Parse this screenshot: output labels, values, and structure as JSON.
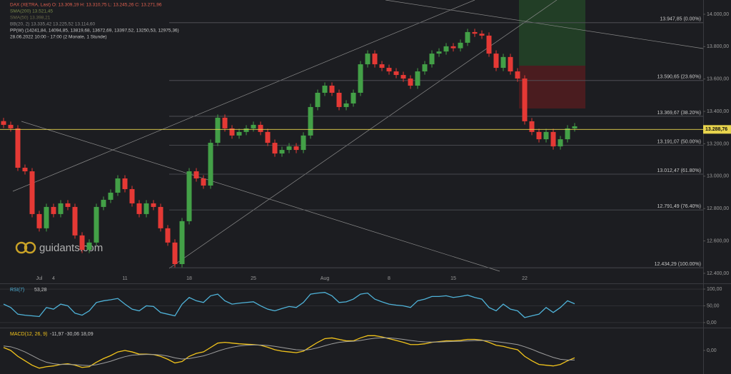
{
  "header": {
    "lines": [
      "DAX (XETRA, Last)  O: 13.309,19  H: 13.310,75  L: 13.245,26  C: 13.271,96",
      "SMA(200)  13.521,45",
      "SMA(50)  13.398,21",
      "BB(20, 2)  13.335,42  13.225,52  13.114,60",
      "PP(W)  (14241,84, 14094,85, 13819,68, 13672,69, 13397,52, 13250,53, 12975,36)",
      "28.06.2022 10:00 - 17:00  (2 Monate, 1 Stunde)"
    ],
    "watermark": "guidants.com"
  },
  "chart_data": [
    {
      "type": "candlestick",
      "categories": [
        null,
        null,
        null,
        null,
        null,
        "Jul",
        null,
        "4",
        null,
        null,
        null,
        null,
        null,
        null,
        null,
        null,
        null,
        "11",
        null,
        null,
        null,
        null,
        null,
        null,
        null,
        null,
        "18",
        null,
        null,
        null,
        null,
        null,
        null,
        null,
        null,
        "25",
        null,
        null,
        null,
        null,
        null,
        null,
        null,
        null,
        null,
        "Aug",
        null,
        null,
        null,
        null,
        null,
        null,
        null,
        null,
        "8",
        null,
        null,
        null,
        null,
        null,
        null,
        null,
        null,
        "15",
        null,
        null,
        null,
        null,
        null,
        null,
        null,
        null,
        null,
        "22",
        null,
        null,
        null,
        null,
        null,
        null,
        null
      ],
      "open": [
        13340,
        13317,
        13295,
        13052,
        13030,
        12766,
        12678,
        12810,
        12766,
        12832,
        12810,
        12634,
        12545,
        12590,
        12810,
        12854,
        12898,
        12986,
        12920,
        12832,
        12766,
        12832,
        12810,
        12678,
        12590,
        12457,
        12722,
        13030,
        12986,
        12942,
        13206,
        13361,
        13295,
        13251,
        13273,
        13295,
        13317,
        13273,
        13206,
        13140,
        13162,
        13184,
        13162,
        13251,
        13427,
        13515,
        13559,
        13515,
        13427,
        13449,
        13515,
        13691,
        13757,
        13691,
        13669,
        13647,
        13625,
        13603,
        13559,
        13647,
        13691,
        13757,
        13770,
        13802,
        13790,
        13824,
        13890,
        13880,
        13868,
        13757,
        13669,
        13736,
        13647,
        13603,
        13339,
        13273,
        13228,
        13273,
        13184,
        13228,
        13295
      ],
      "high": [
        13360,
        13337,
        13315,
        13072,
        13050,
        12786,
        12830,
        12830,
        12852,
        12852,
        12830,
        12654,
        12610,
        12830,
        12874,
        12918,
        13006,
        13006,
        12940,
        12852,
        12852,
        12852,
        12830,
        12698,
        12610,
        12742,
        13050,
        13050,
        13006,
        13226,
        13381,
        13381,
        13315,
        13293,
        13315,
        13337,
        13337,
        13293,
        13226,
        13182,
        13204,
        13204,
        13271,
        13447,
        13535,
        13579,
        13579,
        13535,
        13469,
        13535,
        13711,
        13777,
        13777,
        13711,
        13689,
        13667,
        13645,
        13623,
        13667,
        13711,
        13777,
        13790,
        13822,
        13822,
        13844,
        13910,
        13910,
        13900,
        13888,
        13777,
        13756,
        13756,
        13667,
        13623,
        13359,
        13293,
        13293,
        13293,
        13248,
        13315,
        13328
      ],
      "low": [
        13297,
        13275,
        13032,
        13010,
        12746,
        12658,
        12658,
        12746,
        12746,
        12790,
        12614,
        12525,
        12525,
        12570,
        12790,
        12834,
        12878,
        12900,
        12812,
        12746,
        12746,
        12790,
        12658,
        12570,
        12437,
        12437,
        12702,
        12966,
        12922,
        12922,
        13186,
        13275,
        13231,
        13231,
        13253,
        13275,
        13253,
        13186,
        13120,
        13120,
        13142,
        13142,
        13142,
        13231,
        13407,
        13495,
        13495,
        13407,
        13407,
        13429,
        13495,
        13671,
        13671,
        13649,
        13627,
        13605,
        13583,
        13539,
        13539,
        13627,
        13671,
        13737,
        13750,
        13770,
        13770,
        13804,
        13860,
        13848,
        13737,
        13649,
        13649,
        13627,
        13583,
        13319,
        13253,
        13208,
        13208,
        13164,
        13164,
        13208,
        13275
      ],
      "close": [
        13317,
        13295,
        13052,
        13030,
        12766,
        12678,
        12810,
        12766,
        12832,
        12810,
        12634,
        12545,
        12590,
        12810,
        12854,
        12898,
        12986,
        12920,
        12832,
        12766,
        12832,
        12810,
        12678,
        12590,
        12457,
        12722,
        13030,
        12986,
        12942,
        13206,
        13361,
        13295,
        13251,
        13273,
        13295,
        13317,
        13273,
        13206,
        13140,
        13162,
        13184,
        13162,
        13251,
        13427,
        13515,
        13559,
        13515,
        13427,
        13449,
        13515,
        13691,
        13757,
        13691,
        13669,
        13647,
        13625,
        13603,
        13559,
        13647,
        13691,
        13757,
        13770,
        13802,
        13790,
        13824,
        13890,
        13880,
        13868,
        13757,
        13669,
        13736,
        13647,
        13603,
        13339,
        13273,
        13228,
        13273,
        13184,
        13228,
        13295,
        13308
      ],
      "up_color": "#43a047",
      "down_color": "#e53935",
      "ylim": [
        12338,
        14088
      ],
      "yticks": [
        {
          "value": 14000,
          "label": "14.000,00"
        },
        {
          "value": 13800,
          "label": "13.800,00"
        },
        {
          "value": 13600,
          "label": "13.600,00"
        },
        {
          "value": 13400,
          "label": "13.400,00"
        },
        {
          "value": 13200,
          "label": "13.200,00"
        },
        {
          "value": 13000,
          "label": "13.000,00"
        },
        {
          "value": 12800,
          "label": "12.800,00"
        },
        {
          "value": 12600,
          "label": "12.600,00"
        },
        {
          "value": 12400,
          "label": "12.400,00"
        }
      ],
      "levels": [
        {
          "value": 13947.85,
          "label": "13.947,85 (0.00%)"
        },
        {
          "value": 13590.65,
          "label": "13.590,65 (23.60%)"
        },
        {
          "value": 13369.67,
          "label": "13.369,67 (38.20%)"
        },
        {
          "value": 13191.07,
          "label": "13.191,07 (50.00%)"
        },
        {
          "value": 13012.47,
          "label": "13.012,47 (61.80%)"
        },
        {
          "value": 12791.49,
          "label": "12.791,49 (76.40%)"
        },
        {
          "value": 12434.29,
          "label": "12.434,29 (100.00%)"
        }
      ],
      "last": {
        "value": 13288.76,
        "label": "13.288,76",
        "color": "#e8d44d"
      }
    },
    {
      "type": "line",
      "series": [
        {
          "name": "RSI(7)",
          "legend_value": "53,28",
          "color": "#4fb3d9",
          "values": [
            55,
            45,
            25,
            22,
            20,
            18,
            45,
            40,
            55,
            50,
            28,
            22,
            35,
            60,
            65,
            68,
            72,
            55,
            40,
            35,
            50,
            48,
            30,
            25,
            20,
            55,
            75,
            65,
            60,
            80,
            85,
            65,
            55,
            58,
            60,
            62,
            50,
            40,
            35,
            42,
            48,
            45,
            60,
            85,
            88,
            90,
            80,
            60,
            62,
            70,
            85,
            88,
            70,
            62,
            55,
            52,
            50,
            45,
            65,
            70,
            78,
            78,
            80,
            75,
            78,
            82,
            75,
            70,
            45,
            35,
            55,
            40,
            35,
            15,
            20,
            25,
            45,
            30,
            45,
            65,
            56
          ]
        }
      ],
      "ylim": [
        -13,
        115
      ],
      "yticks": [
        {
          "value": 100,
          "label": "100,00"
        },
        {
          "value": 50,
          "label": "50,00"
        },
        {
          "value": 0,
          "label": "0,00"
        }
      ]
    },
    {
      "type": "line",
      "series": [
        {
          "name": "MACD(12, 26, 9)",
          "legend_value": "-11,97  -30,06  18,09",
          "color": "#f2c41b",
          "values": [
            20,
            0,
            -40,
            -70,
            -100,
            -120,
            -110,
            -105,
            -95,
            -90,
            -100,
            -115,
            -110,
            -80,
            -55,
            -35,
            -10,
            0,
            -10,
            -25,
            -25,
            -28,
            -40,
            -60,
            -85,
            -75,
            -40,
            -20,
            -10,
            20,
            50,
            55,
            50,
            45,
            42,
            40,
            35,
            22,
            5,
            -5,
            -10,
            -15,
            -5,
            25,
            55,
            80,
            85,
            75,
            65,
            65,
            85,
            100,
            100,
            92,
            80,
            68,
            55,
            40,
            40,
            45,
            55,
            60,
            65,
            65,
            68,
            75,
            75,
            70,
            55,
            35,
            28,
            15,
            5,
            -40,
            -70,
            -95,
            -100,
            -105,
            -95,
            -70,
            -50
          ]
        },
        {
          "color": "#9e9e9e",
          "values": [
            30,
            25,
            10,
            -10,
            -35,
            -60,
            -80,
            -90,
            -95,
            -95,
            -96,
            -100,
            -103,
            -97,
            -86,
            -73,
            -57,
            -42,
            -32,
            -29,
            -27,
            -27,
            -30,
            -38,
            -50,
            -58,
            -55,
            -46,
            -37,
            -22,
            -5,
            10,
            22,
            30,
            35,
            37,
            37,
            34,
            28,
            20,
            12,
            5,
            2,
            7,
            18,
            32,
            45,
            55,
            60,
            62,
            68,
            76,
            83,
            86,
            85,
            81,
            75,
            68,
            62,
            58,
            57,
            57,
            59,
            61,
            62,
            65,
            67,
            68,
            66,
            60,
            54,
            47,
            40,
            25,
            8,
            -12,
            -30,
            -47,
            -60,
            -65,
            -65
          ]
        }
      ],
      "ylim": [
        -150,
        150
      ],
      "yticks": [
        {
          "value": 0,
          "label": "0,00"
        }
      ]
    }
  ]
}
